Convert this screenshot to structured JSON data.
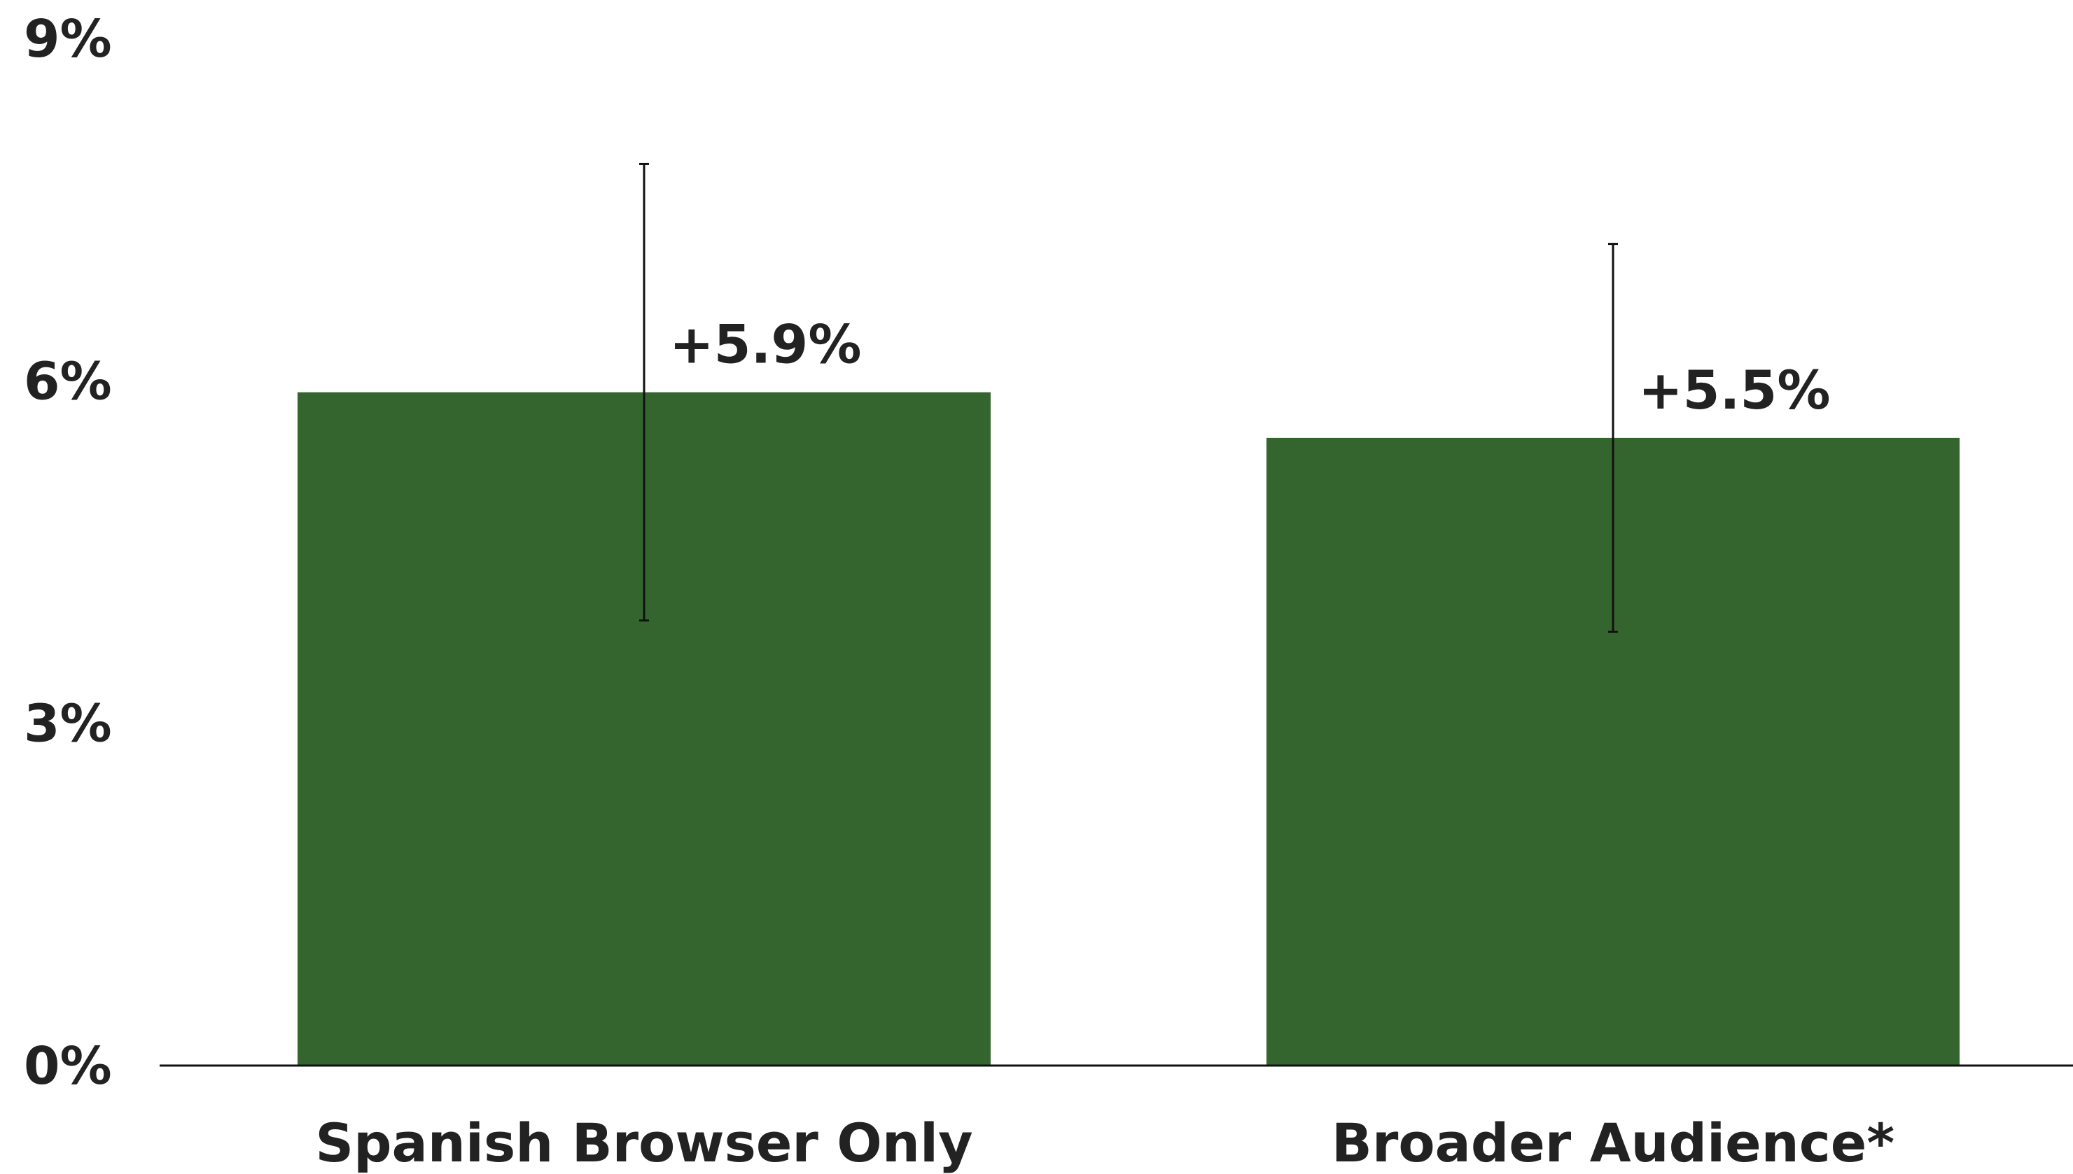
{
  "chart_data": {
    "type": "bar",
    "title": "",
    "xlabel": "",
    "ylabel": "",
    "categories": [
      "Spanish Browser Only",
      "Broader Audience*"
    ],
    "values": [
      5.9,
      5.5
    ],
    "data_labels": [
      "+5.9%",
      "+5.5%"
    ],
    "error_bars": [
      {
        "low": 3.9,
        "high": 7.9
      },
      {
        "low": 3.8,
        "high": 7.2
      }
    ],
    "ylim": [
      0,
      9
    ],
    "yticks": [
      0,
      3,
      6,
      9
    ],
    "ytick_labels": [
      "0%",
      "3%",
      "6%",
      "9%"
    ],
    "grid": false,
    "legend": "none",
    "colors": {
      "bar": "#35652e",
      "error_bar": "#111111",
      "axis": "#111111",
      "text": "#222222"
    }
  }
}
